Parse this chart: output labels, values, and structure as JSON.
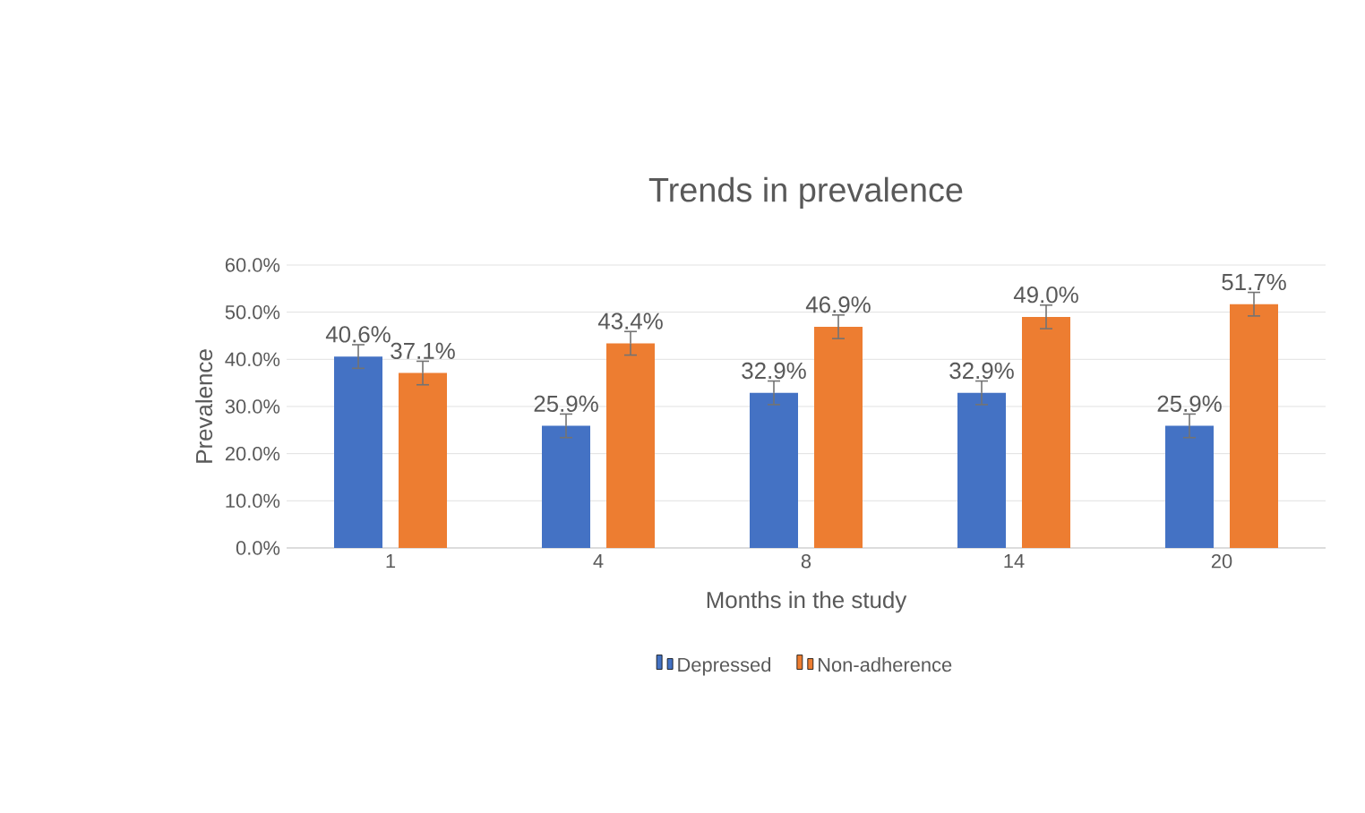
{
  "chart_data": {
    "type": "bar",
    "title": "Trends in prevalence",
    "xlabel": "Months in the study",
    "ylabel": "Prevalence",
    "categories": [
      "1",
      "4",
      "8",
      "14",
      "20"
    ],
    "series": [
      {
        "name": "Depressed",
        "color": "#4472c4",
        "values": [
          40.6,
          25.9,
          32.9,
          32.9,
          25.9
        ],
        "errors": [
          2.5,
          2.5,
          2.5,
          2.5,
          2.5
        ],
        "value_labels": [
          "40.6%",
          "25.9%",
          "32.9%",
          "32.9%",
          "25.9%"
        ]
      },
      {
        "name": "Non-adherence",
        "color": "#ed7d31",
        "values": [
          37.1,
          43.4,
          46.9,
          49.0,
          51.7
        ],
        "errors": [
          2.5,
          2.5,
          2.5,
          2.5,
          2.5
        ],
        "value_labels": [
          "37.1%",
          "43.4%",
          "46.9%",
          "49.0%",
          "51.7%"
        ]
      }
    ],
    "ylim": [
      0,
      60
    ],
    "yticks": [
      {
        "value": 0,
        "label": "0.0%"
      },
      {
        "value": 10,
        "label": "10.0%"
      },
      {
        "value": 20,
        "label": "20.0%"
      },
      {
        "value": 30,
        "label": "30.0%"
      },
      {
        "value": 40,
        "label": "40.0%"
      },
      {
        "value": 50,
        "label": "50.0%"
      },
      {
        "value": 60,
        "label": "60.0%"
      }
    ],
    "grid": "y",
    "legend": "bottom"
  }
}
